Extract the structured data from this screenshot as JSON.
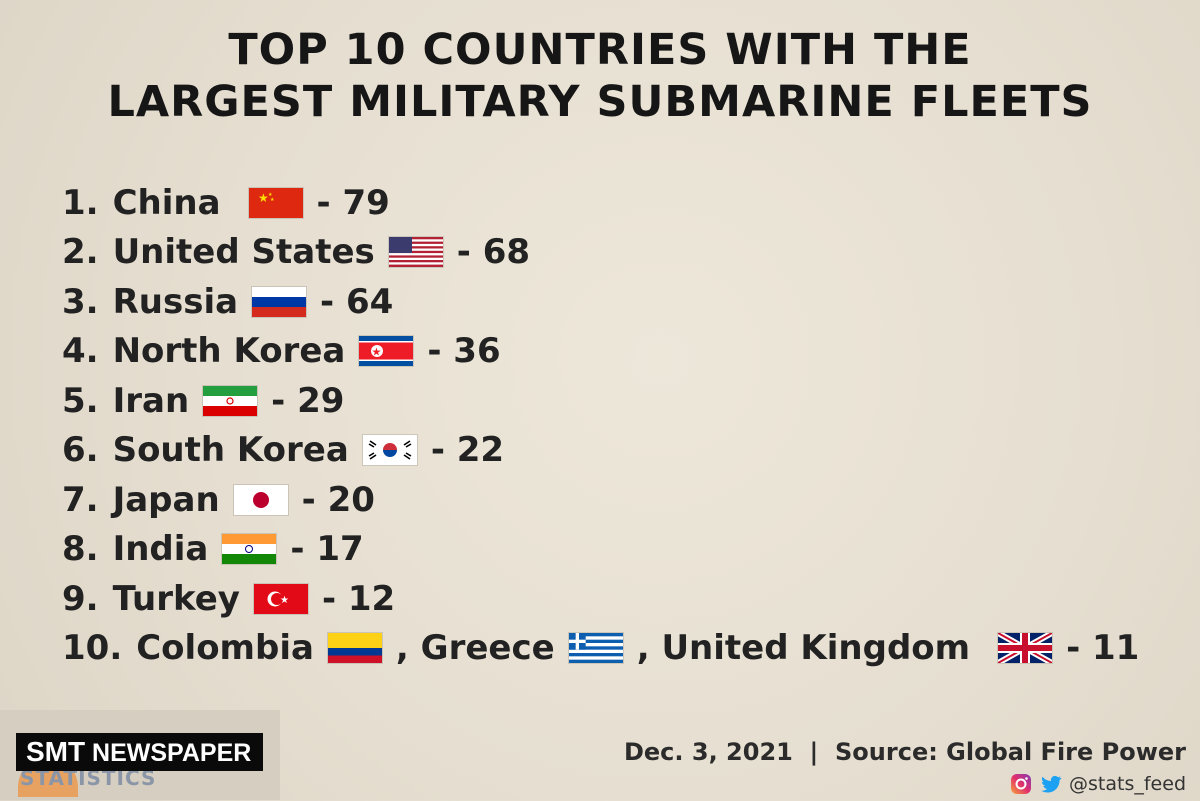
{
  "title": {
    "line1": "TOP 10 COUNTRIES WITH THE",
    "line2": "LARGEST MILITARY SUBMARINE FLEETS"
  },
  "rankings": [
    {
      "rank": "1.",
      "country": "China",
      "flag": "china-flag",
      "count": "- 79"
    },
    {
      "rank": "2.",
      "country": "United States",
      "flag": "us-flag",
      "count": "- 68"
    },
    {
      "rank": "3.",
      "country": "Russia",
      "flag": "russia-flag",
      "count": "- 64"
    },
    {
      "rank": "4.",
      "country": "North Korea",
      "flag": "north-korea-flag",
      "count": "- 36"
    },
    {
      "rank": "5.",
      "country": "Iran",
      "flag": "iran-flag",
      "count": "- 29"
    },
    {
      "rank": "6.",
      "country": "South Korea",
      "flag": "south-korea-flag",
      "count": "- 22"
    },
    {
      "rank": "7.",
      "country": "Japan",
      "flag": "japan-flag",
      "count": "- 20"
    },
    {
      "rank": "8.",
      "country": "India",
      "flag": "india-flag",
      "count": "- 17"
    },
    {
      "rank": "9.",
      "country": "Turkey",
      "flag": "turkey-flag",
      "count": "- 12"
    }
  ],
  "tenth": {
    "rank": "10.",
    "countries": [
      {
        "name": "Colombia",
        "flag": "colombia-flag"
      },
      {
        "name": ", Greece",
        "flag": "greece-flag"
      },
      {
        "name": ", United Kingdom",
        "flag": "uk-flag"
      }
    ],
    "count": "- 11"
  },
  "footer": {
    "date_source": "Dec. 3, 2021  |  Source: Global Fire Power",
    "handle": "@stats_feed",
    "icons": [
      "instagram-icon",
      "twitter-icon"
    ]
  },
  "branding": {
    "watermark_part1": "SMT",
    "watermark_part2": " NEWSPAPER",
    "logo_text": "STATISTICS"
  },
  "colors": {
    "background": "#e6dfd1",
    "text": "#1d1d1d",
    "watermark_bg": "#0a0a0a"
  }
}
